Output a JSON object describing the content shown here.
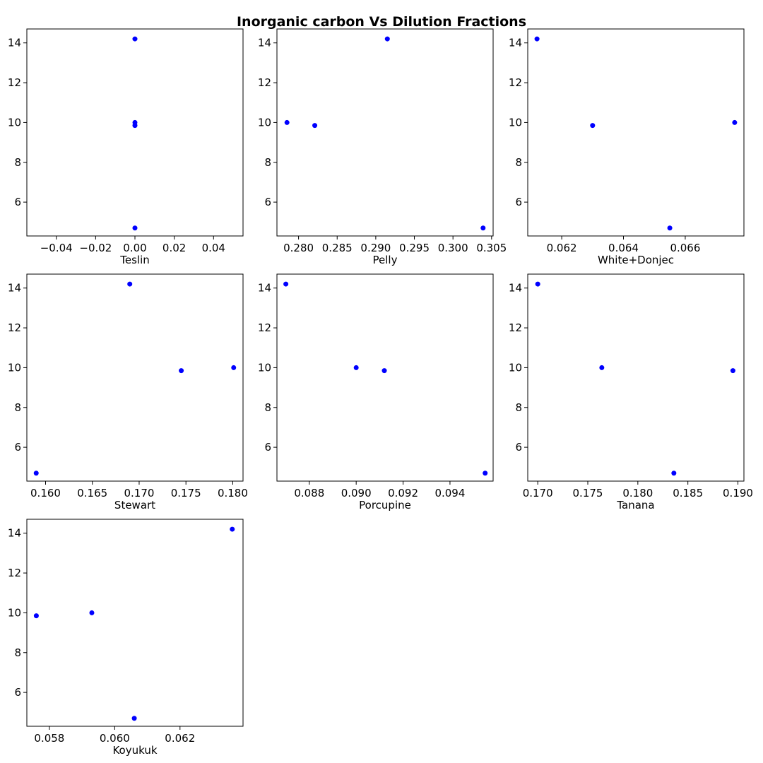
{
  "title": "Inorganic carbon Vs Dilution Fractions",
  "colors": {
    "point": "#0000ff",
    "frame": "#000000",
    "background": "#ffffff"
  },
  "chart_data": [
    {
      "type": "scatter",
      "xlabel": "Teslin",
      "xlim": [
        -0.055,
        0.055
      ],
      "ylim": [
        4.3,
        14.7
      ],
      "xticks": [
        -0.04,
        -0.02,
        0.0,
        0.02,
        0.04
      ],
      "xtick_labels": [
        "−0.04",
        "−0.02",
        "0.00",
        "0.02",
        "0.04"
      ],
      "yticks": [
        6,
        8,
        10,
        12,
        14
      ],
      "ytick_labels": [
        "6",
        "8",
        "10",
        "12",
        "14"
      ],
      "points": [
        {
          "x": 0.0,
          "y": 14.2
        },
        {
          "x": 0.0,
          "y": 10.0
        },
        {
          "x": 0.0,
          "y": 9.85
        },
        {
          "x": 0.0,
          "y": 4.7
        }
      ]
    },
    {
      "type": "scatter",
      "xlabel": "Pelly",
      "xlim": [
        0.2772,
        0.3052
      ],
      "ylim": [
        4.3,
        14.7
      ],
      "xticks": [
        0.28,
        0.285,
        0.29,
        0.295,
        0.3,
        0.305
      ],
      "xtick_labels": [
        "0.280",
        "0.285",
        "0.290",
        "0.295",
        "0.300",
        "0.305"
      ],
      "yticks": [
        6,
        8,
        10,
        12,
        14
      ],
      "ytick_labels": [
        "6",
        "8",
        "10",
        "12",
        "14"
      ],
      "points": [
        {
          "x": 0.2785,
          "y": 10.0
        },
        {
          "x": 0.2821,
          "y": 9.85
        },
        {
          "x": 0.2915,
          "y": 14.2
        },
        {
          "x": 0.3039,
          "y": 4.7
        }
      ]
    },
    {
      "type": "scatter",
      "xlabel": "White+Donjec",
      "xlim": [
        0.0609,
        0.0679
      ],
      "ylim": [
        4.3,
        14.7
      ],
      "xticks": [
        0.062,
        0.064,
        0.066
      ],
      "xtick_labels": [
        "0.062",
        "0.064",
        "0.066"
      ],
      "yticks": [
        6,
        8,
        10,
        12,
        14
      ],
      "ytick_labels": [
        "6",
        "8",
        "10",
        "12",
        "14"
      ],
      "points": [
        {
          "x": 0.0612,
          "y": 14.2
        },
        {
          "x": 0.063,
          "y": 9.85
        },
        {
          "x": 0.0655,
          "y": 4.7
        },
        {
          "x": 0.0676,
          "y": 10.0
        }
      ]
    },
    {
      "type": "scatter",
      "xlabel": "Stewart",
      "xlim": [
        0.158,
        0.1811
      ],
      "ylim": [
        4.3,
        14.7
      ],
      "xticks": [
        0.16,
        0.165,
        0.17,
        0.175,
        0.18
      ],
      "xtick_labels": [
        "0.160",
        "0.165",
        "0.170",
        "0.175",
        "0.180"
      ],
      "yticks": [
        6,
        8,
        10,
        12,
        14
      ],
      "ytick_labels": [
        "6",
        "8",
        "10",
        "12",
        "14"
      ],
      "points": [
        {
          "x": 0.159,
          "y": 4.7
        },
        {
          "x": 0.169,
          "y": 14.2
        },
        {
          "x": 0.1745,
          "y": 9.85
        },
        {
          "x": 0.1801,
          "y": 10.0
        }
      ]
    },
    {
      "type": "scatter",
      "xlabel": "Porcupine",
      "xlim": [
        0.08662,
        0.09584
      ],
      "ylim": [
        4.3,
        14.7
      ],
      "xticks": [
        0.088,
        0.09,
        0.092,
        0.094
      ],
      "xtick_labels": [
        "0.088",
        "0.090",
        "0.092",
        "0.094"
      ],
      "yticks": [
        6,
        8,
        10,
        12,
        14
      ],
      "ytick_labels": [
        "6",
        "8",
        "10",
        "12",
        "14"
      ],
      "points": [
        {
          "x": 0.087,
          "y": 14.2
        },
        {
          "x": 0.09,
          "y": 10.0
        },
        {
          "x": 0.0912,
          "y": 9.85
        },
        {
          "x": 0.0955,
          "y": 4.7
        }
      ]
    },
    {
      "type": "scatter",
      "xlabel": "Tanana",
      "xlim": [
        0.169,
        0.1906
      ],
      "ylim": [
        4.3,
        14.7
      ],
      "xticks": [
        0.17,
        0.175,
        0.18,
        0.185,
        0.19
      ],
      "xtick_labels": [
        "0.170",
        "0.175",
        "0.180",
        "0.185",
        "0.190"
      ],
      "yticks": [
        6,
        8,
        10,
        12,
        14
      ],
      "ytick_labels": [
        "6",
        "8",
        "10",
        "12",
        "14"
      ],
      "points": [
        {
          "x": 0.17,
          "y": 14.2
        },
        {
          "x": 0.1764,
          "y": 10.0
        },
        {
          "x": 0.1836,
          "y": 4.7
        },
        {
          "x": 0.1895,
          "y": 9.85
        }
      ]
    },
    {
      "type": "scatter",
      "xlabel": "Koyukuk",
      "xlim": [
        0.05731,
        0.06393
      ],
      "ylim": [
        4.3,
        14.7
      ],
      "xticks": [
        0.058,
        0.06,
        0.062
      ],
      "xtick_labels": [
        "0.058",
        "0.060",
        "0.062"
      ],
      "yticks": [
        6,
        8,
        10,
        12,
        14
      ],
      "ytick_labels": [
        "6",
        "8",
        "10",
        "12",
        "14"
      ],
      "points": [
        {
          "x": 0.0576,
          "y": 9.85
        },
        {
          "x": 0.0593,
          "y": 10.0
        },
        {
          "x": 0.0606,
          "y": 4.7
        },
        {
          "x": 0.0636,
          "y": 14.2
        }
      ]
    }
  ]
}
